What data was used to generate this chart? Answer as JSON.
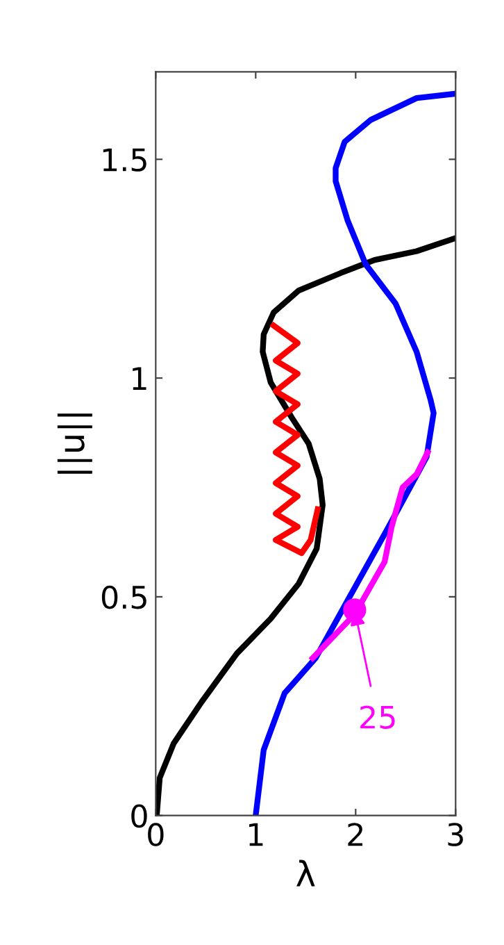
{
  "chart_data": {
    "type": "line",
    "xlabel": "λ",
    "ylabel": "||u||",
    "xlim": [
      0,
      3
    ],
    "ylim": [
      0,
      1.7
    ],
    "xticks": [
      0,
      1,
      2,
      3
    ],
    "yticks": [
      0,
      0.5,
      1,
      1.5
    ],
    "grid": false,
    "legend": false,
    "series": [
      {
        "color": "#000000",
        "x": [
          0.01,
          0.04,
          0.18,
          0.46,
          0.81,
          1.15,
          1.43,
          1.61,
          1.67,
          1.64,
          1.53,
          1.36,
          1.15,
          1.07,
          1.08,
          1.18,
          1.43,
          1.85,
          2.19,
          2.61,
          3.0
        ],
        "values": [
          0,
          0.086,
          0.165,
          0.26,
          0.37,
          0.45,
          0.53,
          0.61,
          0.71,
          0.77,
          0.85,
          0.91,
          0.99,
          1.06,
          1.1,
          1.15,
          1.2,
          1.24,
          1.27,
          1.29,
          1.32
        ]
      },
      {
        "color": "#0000ff",
        "x": [
          1.0,
          1.08,
          1.29,
          1.6,
          1.94,
          2.33,
          2.71,
          2.78,
          2.75,
          2.61,
          2.4,
          2.1,
          1.92,
          1.8,
          1.8,
          1.89,
          2.15,
          2.61,
          3.0
        ],
        "values": [
          0,
          0.15,
          0.28,
          0.36,
          0.5,
          0.66,
          0.82,
          0.92,
          0.95,
          1.06,
          1.17,
          1.26,
          1.36,
          1.45,
          1.48,
          1.54,
          1.59,
          1.64,
          1.65
        ]
      },
      {
        "color": "#ff0000",
        "x": [
          1.18,
          1.42,
          1.2,
          1.42,
          1.2,
          1.42,
          1.2,
          1.42,
          1.2,
          1.42,
          1.2,
          1.42,
          1.2,
          1.42,
          1.2,
          1.46,
          1.55,
          1.62
        ],
        "values": [
          1.12,
          1.08,
          1.04,
          1.01,
          0.97,
          0.94,
          0.9,
          0.87,
          0.83,
          0.8,
          0.76,
          0.73,
          0.69,
          0.66,
          0.63,
          0.6,
          0.63,
          0.7
        ]
      },
      {
        "color": "#ff00ff",
        "x": [
          1.57,
          1.99,
          2.29,
          2.36,
          2.47,
          2.61,
          2.72
        ],
        "values": [
          0.36,
          0.46,
          0.58,
          0.66,
          0.75,
          0.78,
          0.83
        ]
      },
      {
        "type": "scatter",
        "marker": "circle",
        "color": "#ff00ff",
        "x": [
          1.99
        ],
        "values": [
          0.47
        ]
      }
    ],
    "annotations": [
      {
        "text": "25",
        "x": 1.99,
        "y": 0.47
      }
    ]
  }
}
